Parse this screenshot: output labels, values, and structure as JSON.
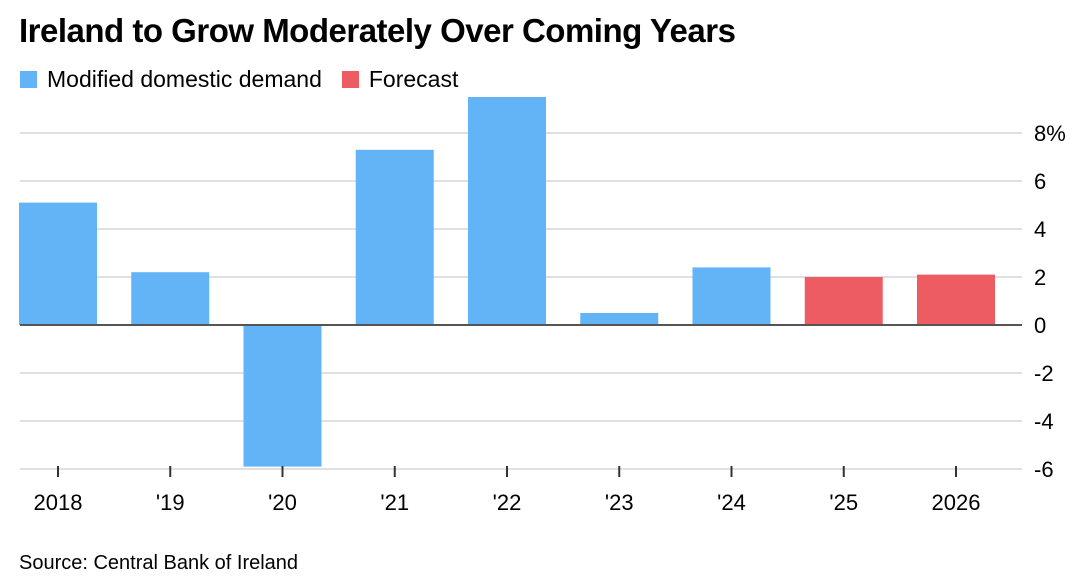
{
  "title": "Ireland to Grow Moderately Over Coming Years",
  "source": "Source: Central Bank of Ireland",
  "colors": {
    "actual": "#63b4f6",
    "forecast": "#ee5c63",
    "grid": "#e0e0e0",
    "axis": "#555555"
  },
  "legend": [
    {
      "label": "Modified domestic demand",
      "color": "#63b4f6"
    },
    {
      "label": "Forecast",
      "color": "#ee5c63"
    }
  ],
  "chart_data": {
    "type": "bar",
    "categories": [
      "2018",
      "'19",
      "'20",
      "'21",
      "'22",
      "'23",
      "'24",
      "'25",
      "2026"
    ],
    "values": [
      5.1,
      2.2,
      -5.9,
      7.3,
      9.5,
      0.5,
      2.4,
      2.0,
      2.1
    ],
    "forecast": [
      false,
      false,
      false,
      false,
      false,
      false,
      false,
      true,
      true
    ],
    "y_ticks": [
      -6,
      -4,
      -2,
      0,
      2,
      4,
      6,
      8
    ],
    "y_tick_labels": [
      "-6",
      "-4",
      "-2",
      "0",
      "2",
      "4",
      "6",
      "8%"
    ],
    "ylim": [
      -6,
      10
    ],
    "y_axis_side": "right",
    "grid": true,
    "legend_position": "top-left"
  }
}
